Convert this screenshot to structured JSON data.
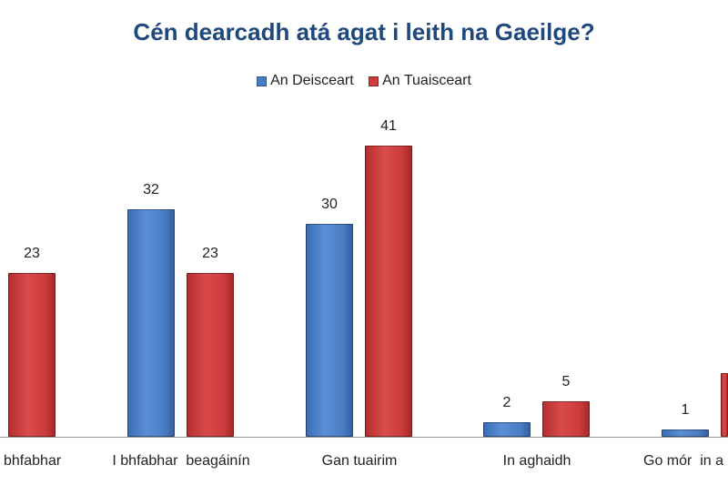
{
  "chart_data": {
    "type": "bar",
    "title": "Cén dearcadh atá agat i leith na Gaeilge?",
    "categories": [
      "bhfabhar",
      "I bhfabhar  beagáinín",
      "Gan tuairim",
      "In aghaidh",
      "Go mór  in a"
    ],
    "series": [
      {
        "name": "An Deisceart",
        "color": "#4a7cc4",
        "values": [
          null,
          32,
          30,
          2,
          1
        ],
        "labels": [
          "",
          "32",
          "30",
          "2",
          "1"
        ]
      },
      {
        "name": "An Tuaisceart",
        "color": "#cc3c3c",
        "values": [
          23,
          23,
          41,
          5,
          9
        ],
        "labels": [
          "23",
          "23",
          "41",
          "5",
          ""
        ]
      }
    ],
    "xlabel": "",
    "ylabel": "",
    "ylim": [
      0,
      41
    ],
    "grid": false,
    "legend": "top"
  }
}
